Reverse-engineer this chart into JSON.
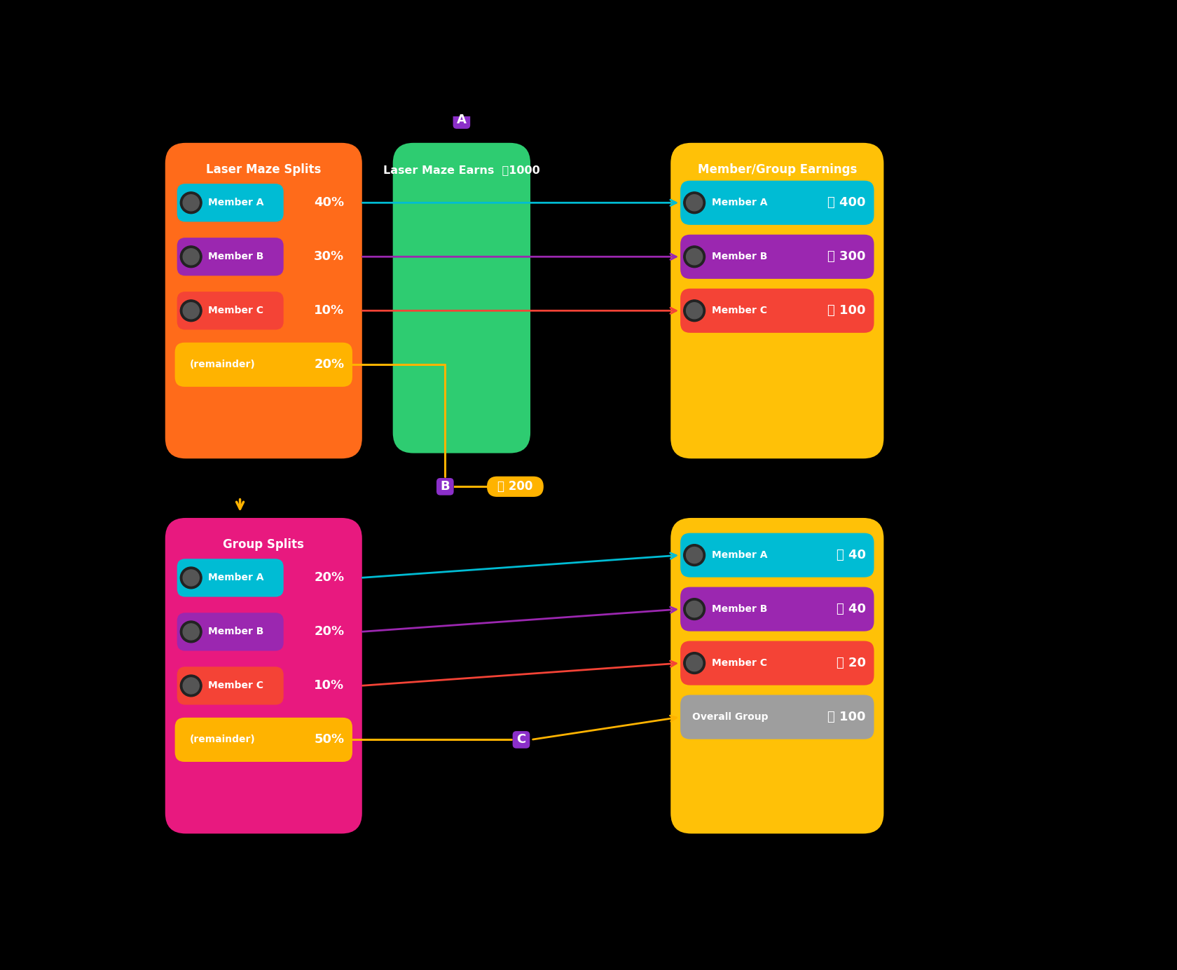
{
  "bg_color": "#000000",
  "fig_width": 16.8,
  "fig_height": 13.84,
  "label_a": "A",
  "label_b": "B",
  "label_c": "C",
  "laser_maze_splits_title": "Laser Maze Splits",
  "laser_maze_earns_title": "Laser Maze Earns",
  "laser_maze_earns_coin": "1000",
  "member_group_earnings_title": "Member/Group Earnings",
  "group_splits_title": "Group Splits",
  "top_bg": "#FF6B1A",
  "bottom_bg": "#E8197F",
  "center_color": "#2ECC71",
  "right_bg": "#FFC107",
  "remainder_color": "#FFB300",
  "label_box_color": "#8B2FC9",
  "cyan": "#00BCD4",
  "purple": "#9B27B0",
  "red": "#F44336",
  "gray": "#9E9E9E",
  "top_splits": [
    {
      "name": "Member A",
      "pct": "40%",
      "color": "#00BCD4"
    },
    {
      "name": "Member B",
      "pct": "30%",
      "color": "#9B27B0"
    },
    {
      "name": "Member C",
      "pct": "10%",
      "color": "#F44336"
    },
    {
      "name": "(remainder)",
      "pct": "20%",
      "color": "#FFB300"
    }
  ],
  "bottom_splits": [
    {
      "name": "Member A",
      "pct": "20%",
      "color": "#00BCD4"
    },
    {
      "name": "Member B",
      "pct": "20%",
      "color": "#9B27B0"
    },
    {
      "name": "Member C",
      "pct": "10%",
      "color": "#F44336"
    },
    {
      "name": "(remainder)",
      "pct": "50%",
      "color": "#FFB300"
    }
  ],
  "top_earnings": [
    {
      "name": "Member A",
      "val": "400",
      "color": "#00BCD4"
    },
    {
      "name": "Member B",
      "val": "300",
      "color": "#9B27B0"
    },
    {
      "name": "Member C",
      "val": "100",
      "color": "#F44336"
    }
  ],
  "bottom_earnings": [
    {
      "name": "Member A",
      "val": "40",
      "color": "#00BCD4"
    },
    {
      "name": "Member B",
      "val": "40",
      "color": "#9B27B0"
    },
    {
      "name": "Member C",
      "val": "20",
      "color": "#F44336"
    },
    {
      "name": "Overall Group",
      "val": "100",
      "color": "#9E9E9E"
    }
  ],
  "remainder_amount": "200"
}
